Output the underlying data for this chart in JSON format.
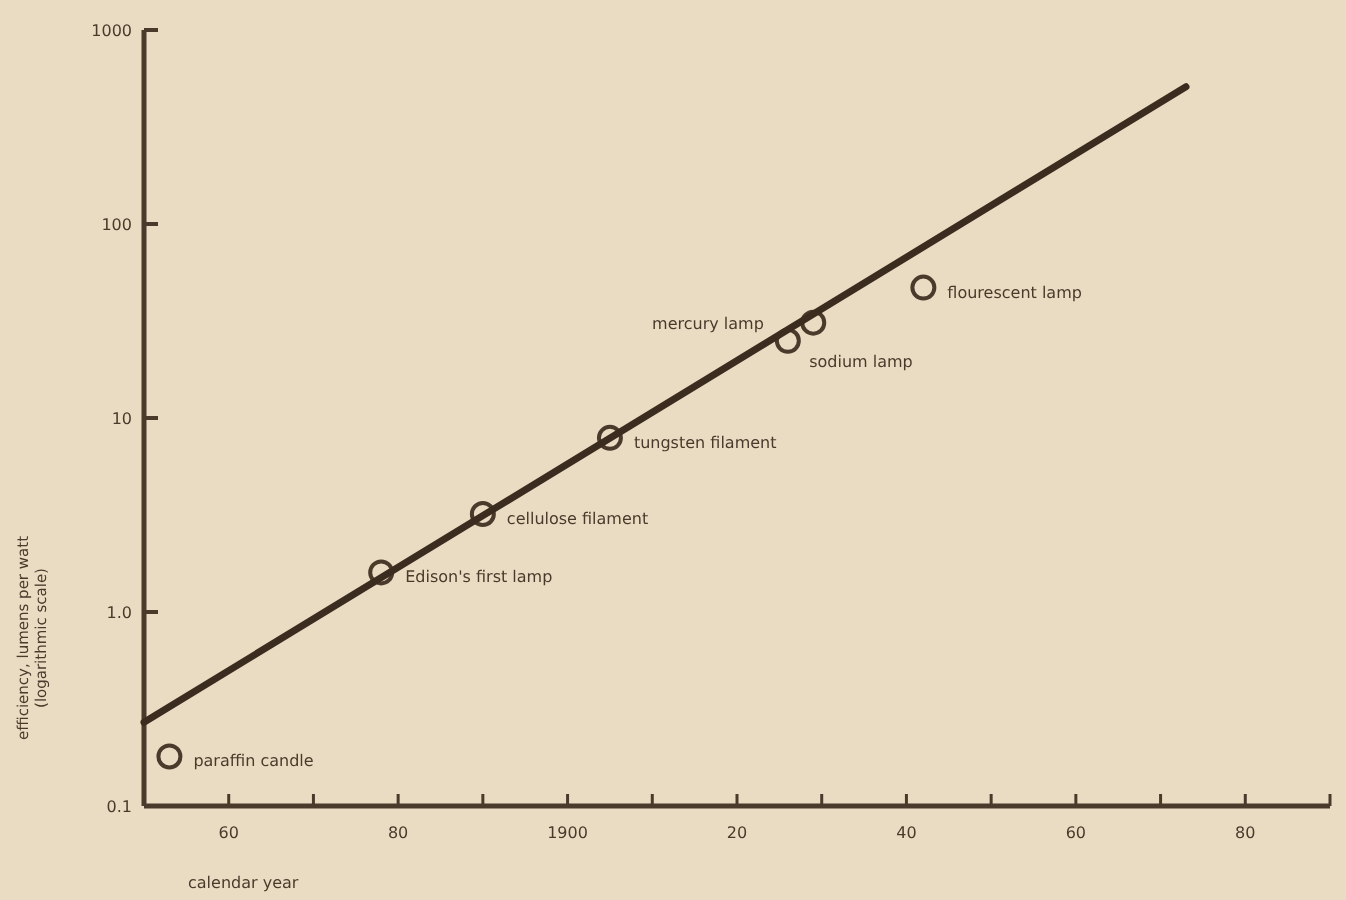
{
  "chart_data": {
    "type": "scatter",
    "xlabel": "calendar year",
    "ylabel": "efficiency, lumens per watt\n(logarithmic scale)",
    "log": true,
    "grid": false,
    "marker": "circle",
    "xlim": [
      1850,
      1990
    ],
    "ylim": [
      0.1,
      1000
    ],
    "xticks": [
      {
        "value": 1860,
        "label": "60"
      },
      {
        "value": 1870,
        "label": null
      },
      {
        "value": 1880,
        "label": "80"
      },
      {
        "value": 1890,
        "label": null
      },
      {
        "value": 1900,
        "label": "1900"
      },
      {
        "value": 1910,
        "label": null
      },
      {
        "value": 1920,
        "label": "20"
      },
      {
        "value": 1930,
        "label": null
      },
      {
        "value": 1940,
        "label": "40"
      },
      {
        "value": 1950,
        "label": null
      },
      {
        "value": 1960,
        "label": "60"
      },
      {
        "value": 1970,
        "label": null
      },
      {
        "value": 1980,
        "label": "80"
      },
      {
        "value": 1990,
        "label": null
      }
    ],
    "yticks": [
      0.1,
      {
        "value": 1,
        "label": "1.0"
      },
      10,
      100,
      1000
    ],
    "series": [
      {
        "color": "#4a3a2c",
        "x": [
          1853,
          1878,
          1890,
          1905,
          1926,
          1929,
          1942
        ],
        "values": [
          0.18,
          1.6,
          3.2,
          7.9,
          25,
          31,
          47
        ]
      },
      {
        "type": "line",
        "color": "#3b2c20",
        "marker": "none",
        "x": [
          1850,
          1973
        ],
        "values": [
          0.27,
          510
        ]
      }
    ],
    "annotations": [
      {
        "text": "paraffin candle",
        "x": 1853,
        "y": 0.18
      },
      {
        "text": "Edison's first lamp",
        "x": 1878,
        "y": 1.6
      },
      {
        "text": "cellulose filament",
        "x": 1890,
        "y": 3.2
      },
      {
        "text": "tungsten filament",
        "x": 1905,
        "y": 7.9
      },
      {
        "text": "mercury lamp",
        "x": 1926,
        "y": 25
      },
      {
        "text": "sodium lamp",
        "x": 1929,
        "y": 31
      },
      {
        "text": "flourescent lamp",
        "x": 1942,
        "y": 47
      }
    ]
  }
}
